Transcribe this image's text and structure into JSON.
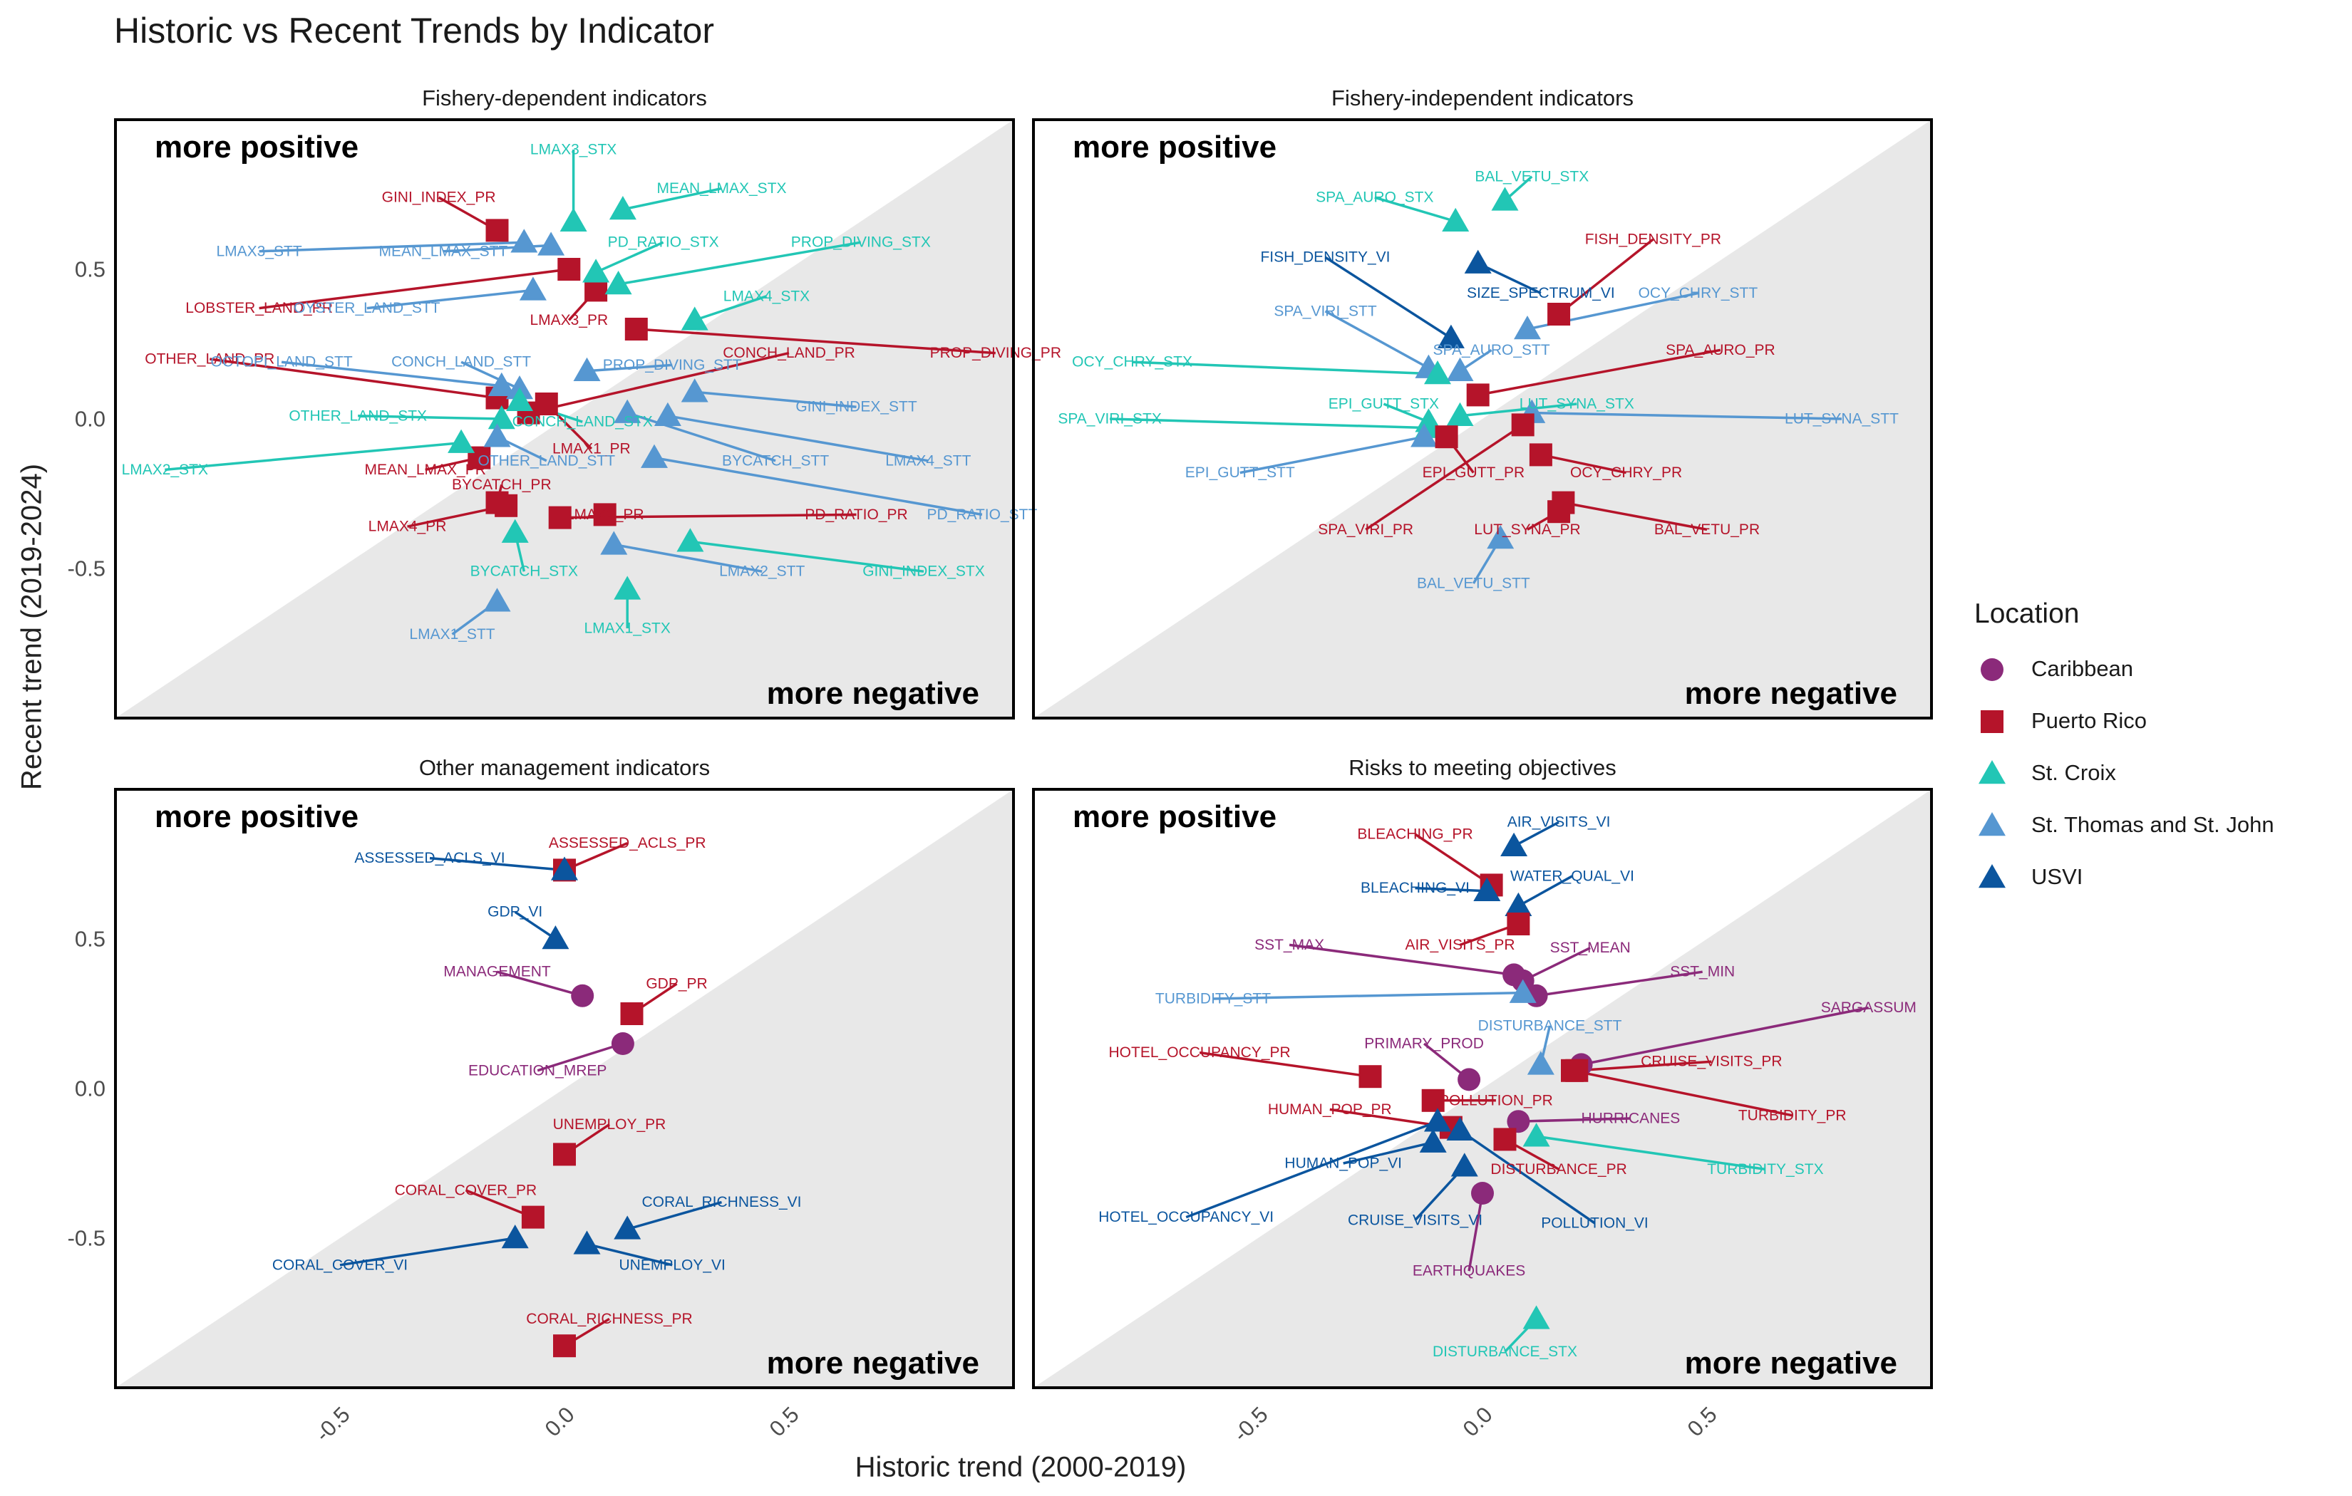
{
  "chart_data": {
    "type": "scatter",
    "title": "Historic vs Recent Trends by Indicator",
    "xlabel": "Historic trend (2000-2019)",
    "ylabel": "Recent trend (2019-2024)",
    "xlim": [
      -1,
      1
    ],
    "ylim": [
      -1,
      1
    ],
    "x_ticks": [
      "-0.5",
      "0.0",
      "0.5"
    ],
    "y_ticks": [
      "0.5",
      "0.0",
      "-0.5"
    ],
    "corner_labels": {
      "top_left": "more positive",
      "bottom_right": "more negative"
    },
    "legend": {
      "title": "Location",
      "placement": "right",
      "entries": [
        {
          "name": "Caribbean",
          "shape": "circle",
          "color": "#8B2A7A"
        },
        {
          "name": "Puerto Rico",
          "shape": "square",
          "color": "#B5142A"
        },
        {
          "name": "St. Croix",
          "shape": "triangle",
          "color": "#22C6B5"
        },
        {
          "name": "St. Thomas and St. John",
          "shape": "triangle",
          "color": "#5697D1"
        },
        {
          "name": "USVI",
          "shape": "triangle",
          "color": "#0B559E"
        }
      ]
    },
    "panels": [
      {
        "title": "Fishery-dependent indicators",
        "points": [
          {
            "label": "GINI_INDEX_PR",
            "loc": "Puerto Rico",
            "x": -0.15,
            "y": 0.63,
            "lx": -0.28,
            "ly": 0.74
          },
          {
            "label": "LOBSTER_LAND_PR",
            "loc": "Puerto Rico",
            "x": 0.01,
            "y": 0.5,
            "lx": -0.68,
            "ly": 0.37
          },
          {
            "label": "LMAX3_PR",
            "loc": "Puerto Rico",
            "x": 0.07,
            "y": 0.43,
            "lx": 0.01,
            "ly": 0.33
          },
          {
            "label": "PROP_DIVING_PR",
            "loc": "Puerto Rico",
            "x": 0.16,
            "y": 0.3,
            "lx": 0.96,
            "ly": 0.22
          },
          {
            "label": "OTHER_LAND_PR",
            "loc": "Puerto Rico",
            "x": -0.15,
            "y": 0.07,
            "lx": -0.79,
            "ly": 0.2
          },
          {
            "label": "CONCH_LAND_PR",
            "loc": "Puerto Rico",
            "x": -0.08,
            "y": 0.02,
            "lx": 0.5,
            "ly": 0.22
          },
          {
            "label": "LMAX1_PR",
            "loc": "Puerto Rico",
            "x": -0.04,
            "y": 0.05,
            "lx": 0.06,
            "ly": -0.1
          },
          {
            "label": "MEAN_LMAX_PR",
            "loc": "Puerto Rico",
            "x": -0.19,
            "y": -0.13,
            "lx": -0.31,
            "ly": -0.17
          },
          {
            "label": "BYCATCH_PR",
            "loc": "Puerto Rico",
            "x": -0.15,
            "y": -0.28,
            "lx": -0.14,
            "ly": -0.22
          },
          {
            "label": "LMAX4_PR",
            "loc": "Puerto Rico",
            "x": -0.13,
            "y": -0.29,
            "lx": -0.35,
            "ly": -0.36
          },
          {
            "label": "LMAX2_PR",
            "loc": "Puerto Rico",
            "x": 0.09,
            "y": -0.32,
            "lx": 0.09,
            "ly": -0.32
          },
          {
            "label": "PD_RATIO_PR",
            "loc": "Puerto Rico",
            "x": -0.01,
            "y": -0.33,
            "lx": 0.65,
            "ly": -0.32
          },
          {
            "label": "LMAX3_STX",
            "loc": "St. Croix",
            "x": 0.02,
            "y": 0.66,
            "lx": 0.02,
            "ly": 0.9
          },
          {
            "label": "MEAN_LMAX_STX",
            "loc": "St. Croix",
            "x": 0.13,
            "y": 0.7,
            "lx": 0.35,
            "ly": 0.77
          },
          {
            "label": "PD_RATIO_STX",
            "loc": "St. Croix",
            "x": 0.07,
            "y": 0.49,
            "lx": 0.22,
            "ly": 0.59
          },
          {
            "label": "PROP_DIVING_STX",
            "loc": "St. Croix",
            "x": 0.12,
            "y": 0.45,
            "lx": 0.66,
            "ly": 0.59
          },
          {
            "label": "LMAX4_STX",
            "loc": "St. Croix",
            "x": 0.29,
            "y": 0.33,
            "lx": 0.45,
            "ly": 0.41
          },
          {
            "label": "OTHER_LAND_STX",
            "loc": "St. Croix",
            "x": -0.14,
            "y": 0.0,
            "lx": -0.46,
            "ly": 0.01
          },
          {
            "label": "LMAX2_STX",
            "loc": "St. Croix",
            "x": -0.23,
            "y": -0.08,
            "lx": -0.89,
            "ly": -0.17
          },
          {
            "label": "BYCATCH_STX",
            "loc": "St. Croix",
            "x": -0.11,
            "y": -0.38,
            "lx": -0.09,
            "ly": -0.51
          },
          {
            "label": "GINI_INDEX_STX",
            "loc": "St. Croix",
            "x": 0.28,
            "y": -0.41,
            "lx": 0.8,
            "ly": -0.51
          },
          {
            "label": "LMAX1_STX",
            "loc": "St. Croix",
            "x": 0.14,
            "y": -0.57,
            "lx": 0.14,
            "ly": -0.7
          },
          {
            "label": "LMAX3_STT",
            "loc": "St. Thomas and St. John",
            "x": -0.09,
            "y": 0.59,
            "lx": -0.68,
            "ly": 0.56
          },
          {
            "label": "MEAN_LMAX_STT",
            "loc": "St. Thomas and St. John",
            "x": -0.03,
            "y": 0.58,
            "lx": -0.27,
            "ly": 0.56
          },
          {
            "label": "OYSTER_LAND_STT",
            "loc": "St. Thomas and St. John",
            "x": -0.07,
            "y": 0.43,
            "lx": -0.44,
            "ly": 0.37
          },
          {
            "label": "CONCH_LAND_STT",
            "loc": "St. Thomas and St. John",
            "x": -0.1,
            "y": 0.1,
            "lx": -0.23,
            "ly": 0.19
          },
          {
            "label": "OCTOPI_LAND_STT",
            "loc": "St. Thomas and St. John",
            "x": -0.14,
            "y": 0.11,
            "lx": -0.63,
            "ly": 0.19
          },
          {
            "label": "PROP_DIVING_STT",
            "loc": "St. Thomas and St. John",
            "x": 0.05,
            "y": 0.16,
            "lx": 0.24,
            "ly": 0.18
          },
          {
            "label": "CONCH_LAND_STX",
            "loc": "St. Croix",
            "x": -0.1,
            "y": 0.06,
            "lx": 0.04,
            "ly": -0.01
          },
          {
            "label": "OTHER_LAND_STT",
            "loc": "St. Thomas and St. John",
            "x": -0.15,
            "y": -0.06,
            "lx": -0.04,
            "ly": -0.14
          },
          {
            "label": "GINI_INDEX_STT",
            "loc": "St. Thomas and St. John",
            "x": 0.29,
            "y": 0.09,
            "lx": 0.65,
            "ly": 0.04
          },
          {
            "label": "BYCATCH_STT",
            "loc": "St. Thomas and St. John",
            "x": 0.14,
            "y": 0.02,
            "lx": 0.47,
            "ly": -0.14
          },
          {
            "label": "LMAX4_STT",
            "loc": "St. Thomas and St. John",
            "x": 0.23,
            "y": 0.01,
            "lx": 0.81,
            "ly": -0.14
          },
          {
            "label": "PD_RATIO_STT",
            "loc": "St. Thomas and St. John",
            "x": 0.2,
            "y": -0.13,
            "lx": 0.93,
            "ly": -0.32
          },
          {
            "label": "LMAX2_STT",
            "loc": "St. Thomas and St. John",
            "x": 0.11,
            "y": -0.42,
            "lx": 0.44,
            "ly": -0.51
          },
          {
            "label": "LMAX1_STT",
            "loc": "St. Thomas and St. John",
            "x": -0.15,
            "y": -0.61,
            "lx": -0.25,
            "ly": -0.72
          }
        ]
      },
      {
        "title": "Fishery-independent indicators",
        "points": [
          {
            "label": "SPA_AURO_STX",
            "loc": "St. Croix",
            "x": -0.06,
            "y": 0.66,
            "lx": -0.24,
            "ly": 0.74
          },
          {
            "label": "BAL_VETU_STX",
            "loc": "St. Croix",
            "x": 0.05,
            "y": 0.73,
            "lx": 0.11,
            "ly": 0.81
          },
          {
            "label": "FISH_DENSITY_PR",
            "loc": "Puerto Rico",
            "x": 0.17,
            "y": 0.35,
            "lx": 0.38,
            "ly": 0.6
          },
          {
            "label": "FISH_DENSITY_VI",
            "loc": "USVI",
            "x": -0.07,
            "y": 0.27,
            "lx": -0.35,
            "ly": 0.54
          },
          {
            "label": "SIZE_SPECTRUM_VI",
            "loc": "USVI",
            "x": -0.01,
            "y": 0.52,
            "lx": 0.13,
            "ly": 0.42
          },
          {
            "label": "OCY_CHRY_STT",
            "loc": "St. Thomas and St. John",
            "x": 0.1,
            "y": 0.3,
            "lx": 0.48,
            "ly": 0.42
          },
          {
            "label": "SPA_VIRI_STT",
            "loc": "St. Thomas and St. John",
            "x": -0.12,
            "y": 0.17,
            "lx": -0.35,
            "ly": 0.36
          },
          {
            "label": "SPA_AURO_STT",
            "loc": "St. Thomas and St. John",
            "x": -0.05,
            "y": 0.16,
            "lx": 0.02,
            "ly": 0.23
          },
          {
            "label": "OCY_CHRY_STX",
            "loc": "St. Croix",
            "x": -0.1,
            "y": 0.15,
            "lx": -0.78,
            "ly": 0.19
          },
          {
            "label": "SPA_AURO_PR",
            "loc": "Puerto Rico",
            "x": -0.01,
            "y": 0.08,
            "lx": 0.53,
            "ly": 0.23
          },
          {
            "label": "EPI_GUTT_STX",
            "loc": "St. Croix",
            "x": -0.12,
            "y": -0.01,
            "lx": -0.22,
            "ly": 0.05
          },
          {
            "label": "SPA_VIRI_STX",
            "loc": "St. Croix",
            "x": -0.12,
            "y": -0.03,
            "lx": -0.83,
            "ly": 0.0
          },
          {
            "label": "LUT_SYNA_STX",
            "loc": "St. Croix",
            "x": -0.05,
            "y": 0.01,
            "lx": 0.21,
            "ly": 0.05
          },
          {
            "label": "LUT_SYNA_STT",
            "loc": "St. Thomas and St. John",
            "x": 0.11,
            "y": 0.02,
            "lx": 0.8,
            "ly": 0.0
          },
          {
            "label": "EPI_GUTT_STT",
            "loc": "St. Thomas and St. John",
            "x": -0.13,
            "y": -0.06,
            "lx": -0.54,
            "ly": -0.18
          },
          {
            "label": "EPI_GUTT_PR",
            "loc": "Puerto Rico",
            "x": -0.08,
            "y": -0.06,
            "lx": -0.02,
            "ly": -0.18
          },
          {
            "label": "OCY_CHRY_PR",
            "loc": "Puerto Rico",
            "x": 0.13,
            "y": -0.12,
            "lx": 0.32,
            "ly": -0.18
          },
          {
            "label": "SPA_VIRI_PR",
            "loc": "Puerto Rico",
            "x": 0.09,
            "y": -0.02,
            "lx": -0.26,
            "ly": -0.37
          },
          {
            "label": "LUT_SYNA_PR",
            "loc": "Puerto Rico",
            "x": 0.17,
            "y": -0.31,
            "lx": 0.1,
            "ly": -0.37
          },
          {
            "label": "BAL_VETU_PR",
            "loc": "Puerto Rico",
            "x": 0.18,
            "y": -0.28,
            "lx": 0.5,
            "ly": -0.37
          },
          {
            "label": "BAL_VETU_STT",
            "loc": "St. Thomas and St. John",
            "x": 0.04,
            "y": -0.4,
            "lx": -0.02,
            "ly": -0.55
          }
        ]
      },
      {
        "title": "Other management indicators",
        "points": [
          {
            "label": "ASSESSED_ACLS_PR",
            "loc": "Puerto Rico",
            "x": 0.0,
            "y": 0.73,
            "lx": 0.14,
            "ly": 0.82
          },
          {
            "label": "ASSESSED_ACLS_VI",
            "loc": "USVI",
            "x": 0.0,
            "y": 0.73,
            "lx": -0.3,
            "ly": 0.77
          },
          {
            "label": "GDP_VI",
            "loc": "USVI",
            "x": -0.02,
            "y": 0.5,
            "lx": -0.11,
            "ly": 0.59
          },
          {
            "label": "MANAGEMENT",
            "loc": "Caribbean",
            "x": 0.04,
            "y": 0.31,
            "lx": -0.15,
            "ly": 0.39
          },
          {
            "label": "GDP_PR",
            "loc": "Puerto Rico",
            "x": 0.15,
            "y": 0.25,
            "lx": 0.25,
            "ly": 0.35
          },
          {
            "label": "EDUCATION_MREP",
            "loc": "Caribbean",
            "x": 0.13,
            "y": 0.15,
            "lx": -0.06,
            "ly": 0.06
          },
          {
            "label": "UNEMPLOY_PR",
            "loc": "Puerto Rico",
            "x": 0.0,
            "y": -0.22,
            "lx": 0.1,
            "ly": -0.12
          },
          {
            "label": "CORAL_COVER_PR",
            "loc": "Puerto Rico",
            "x": -0.07,
            "y": -0.43,
            "lx": -0.22,
            "ly": -0.34
          },
          {
            "label": "CORAL_RICHNESS_VI",
            "loc": "USVI",
            "x": 0.14,
            "y": -0.47,
            "lx": 0.35,
            "ly": -0.38
          },
          {
            "label": "CORAL_COVER_VI",
            "loc": "USVI",
            "x": -0.11,
            "y": -0.5,
            "lx": -0.5,
            "ly": -0.59
          },
          {
            "label": "UNEMPLOY_VI",
            "loc": "USVI",
            "x": 0.05,
            "y": -0.52,
            "lx": 0.24,
            "ly": -0.59
          },
          {
            "label": "CORAL_RICHNESS_PR",
            "loc": "Puerto Rico",
            "x": 0.0,
            "y": -0.86,
            "lx": 0.1,
            "ly": -0.77
          }
        ]
      },
      {
        "title": "Risks to meeting objectives",
        "points": [
          {
            "label": "AIR_VISITS_VI",
            "loc": "USVI",
            "x": 0.07,
            "y": 0.81,
            "lx": 0.17,
            "ly": 0.89
          },
          {
            "label": "BLEACHING_PR",
            "loc": "Puerto Rico",
            "x": 0.02,
            "y": 0.68,
            "lx": -0.15,
            "ly": 0.85
          },
          {
            "label": "BLEACHING_VI",
            "loc": "USVI",
            "x": 0.01,
            "y": 0.66,
            "lx": -0.15,
            "ly": 0.67
          },
          {
            "label": "WATER_QUAL_VI",
            "loc": "USVI",
            "x": 0.08,
            "y": 0.61,
            "lx": 0.2,
            "ly": 0.71
          },
          {
            "label": "AIR_VISITS_PR",
            "loc": "Puerto Rico",
            "x": 0.08,
            "y": 0.55,
            "lx": -0.05,
            "ly": 0.48
          },
          {
            "label": "SST_MAX",
            "loc": "Caribbean",
            "x": 0.07,
            "y": 0.38,
            "lx": -0.43,
            "ly": 0.48
          },
          {
            "label": "SST_MEAN",
            "loc": "Caribbean",
            "x": 0.09,
            "y": 0.36,
            "lx": 0.24,
            "ly": 0.47
          },
          {
            "label": "SST_MIN",
            "loc": "Caribbean",
            "x": 0.12,
            "y": 0.31,
            "lx": 0.49,
            "ly": 0.39
          },
          {
            "label": "TURBIDITY_STT",
            "loc": "St. Thomas and St. John",
            "x": 0.09,
            "y": 0.32,
            "lx": -0.6,
            "ly": 0.3
          },
          {
            "label": "SARGASSUM",
            "loc": "Caribbean",
            "x": 0.22,
            "y": 0.08,
            "lx": 0.86,
            "ly": 0.27
          },
          {
            "label": "DISTURBANCE_STT",
            "loc": "St. Thomas and St. John",
            "x": 0.13,
            "y": 0.08,
            "lx": 0.15,
            "ly": 0.21
          },
          {
            "label": "PRIMARY_PROD",
            "loc": "Caribbean",
            "x": -0.03,
            "y": 0.03,
            "lx": -0.13,
            "ly": 0.15
          },
          {
            "label": "HOTEL_OCCUPANCY_PR",
            "loc": "Puerto Rico",
            "x": -0.25,
            "y": 0.04,
            "lx": -0.63,
            "ly": 0.12
          },
          {
            "label": "CRUISE_VISITS_PR",
            "loc": "Puerto Rico",
            "x": 0.21,
            "y": 0.06,
            "lx": 0.51,
            "ly": 0.09
          },
          {
            "label": "TURBIDITY_PR",
            "loc": "Puerto Rico",
            "x": 0.2,
            "y": 0.06,
            "lx": 0.69,
            "ly": -0.09
          },
          {
            "label": "POLLUTION_PR",
            "loc": "Puerto Rico",
            "x": -0.11,
            "y": -0.04,
            "lx": 0.03,
            "ly": -0.04
          },
          {
            "label": "HUMAN_POP_PR",
            "loc": "Puerto Rico",
            "x": -0.07,
            "y": -0.13,
            "lx": -0.34,
            "ly": -0.07
          },
          {
            "label": "HURRICANES",
            "loc": "Caribbean",
            "x": 0.08,
            "y": -0.11,
            "lx": 0.33,
            "ly": -0.1
          },
          {
            "label": "TURBIDITY_STX",
            "loc": "St. Croix",
            "x": 0.12,
            "y": -0.16,
            "lx": 0.63,
            "ly": -0.27
          },
          {
            "label": "DISTURBANCE_PR",
            "loc": "Puerto Rico",
            "x": 0.05,
            "y": -0.17,
            "lx": 0.17,
            "ly": -0.27
          },
          {
            "label": "HUMAN_POP_VI",
            "loc": "USVI",
            "x": -0.11,
            "y": -0.18,
            "lx": -0.31,
            "ly": -0.25
          },
          {
            "label": "CRUISE_VISITS_VI",
            "loc": "USVI",
            "x": -0.04,
            "y": -0.26,
            "lx": -0.15,
            "ly": -0.44
          },
          {
            "label": "HOTEL_OCCUPANCY_VI",
            "loc": "USVI",
            "x": -0.1,
            "y": -0.11,
            "lx": -0.66,
            "ly": -0.43
          },
          {
            "label": "POLLUTION_VI",
            "loc": "USVI",
            "x": -0.05,
            "y": -0.14,
            "lx": 0.25,
            "ly": -0.45
          },
          {
            "label": "EARTHQUAKES",
            "loc": "Caribbean",
            "x": 0.0,
            "y": -0.35,
            "lx": -0.03,
            "ly": -0.61
          },
          {
            "label": "DISTURBANCE_STX",
            "loc": "St. Croix",
            "x": 0.12,
            "y": -0.77,
            "lx": 0.05,
            "ly": -0.88
          }
        ]
      }
    ]
  }
}
